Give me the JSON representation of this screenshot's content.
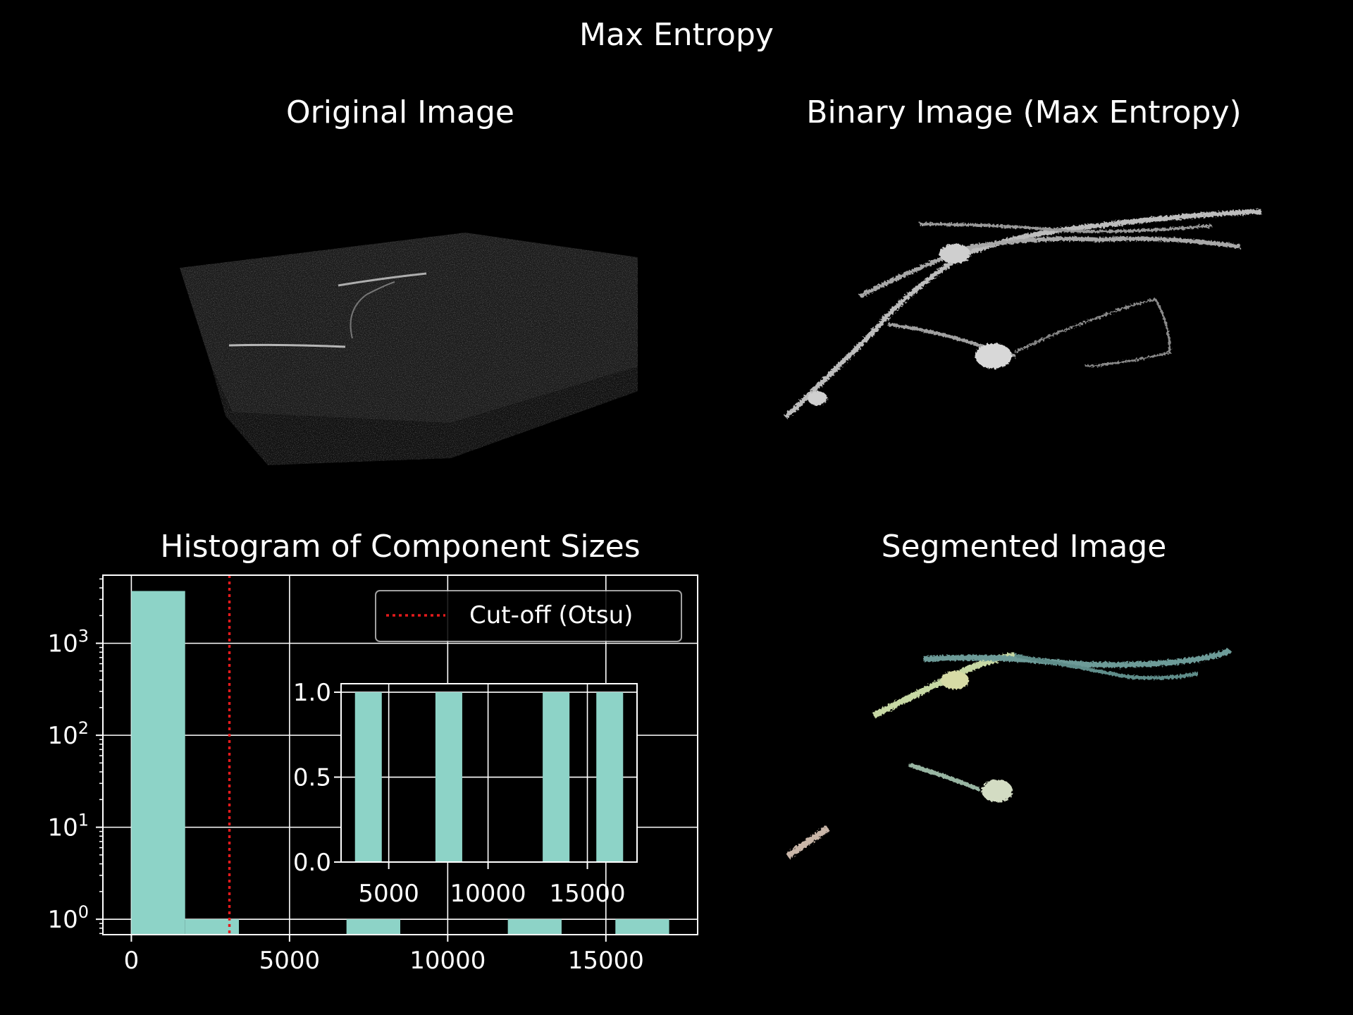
{
  "figure": {
    "suptitle": "Max Entropy",
    "panels": {
      "original": "Original Image",
      "binary": "Binary Image (Max Entropy)",
      "histogram": "Histogram of Component Sizes",
      "segmented": "Segmented Image"
    }
  },
  "colors": {
    "background": "#000000",
    "bar": "#8dd3c7",
    "cutoff": "#e41a1c",
    "grid": "#ffffff"
  },
  "chart_data": [
    {
      "type": "bar",
      "name": "main-histogram",
      "yscale": "log",
      "xlim": [
        -900,
        17900
      ],
      "ylim": [
        0.68,
        5500
      ],
      "xticks": [
        0,
        5000,
        10000,
        15000
      ],
      "xtick_labels": [
        "0",
        "5000",
        "10000",
        "15000"
      ],
      "yticks": [
        1,
        10,
        100,
        1000
      ],
      "ytick_labels": [
        {
          "base": "10",
          "exp": "0"
        },
        {
          "base": "10",
          "exp": "1"
        },
        {
          "base": "10",
          "exp": "2"
        },
        {
          "base": "10",
          "exp": "3"
        }
      ],
      "grid": true,
      "bins": [
        {
          "x0": 0,
          "x1": 1700,
          "count": 3700
        },
        {
          "x0": 1700,
          "x1": 3400,
          "count": 1
        },
        {
          "x0": 6800,
          "x1": 8500,
          "count": 1
        },
        {
          "x0": 11900,
          "x1": 13600,
          "count": 1
        },
        {
          "x0": 15300,
          "x1": 17000,
          "count": 1
        }
      ],
      "cutoff": {
        "x": 3100,
        "label": "Cut-off (Otsu)"
      },
      "legend": "top-right"
    },
    {
      "type": "bar",
      "name": "inset-histogram",
      "xlim": [
        2600,
        17500
      ],
      "ylim": [
        0,
        1.05
      ],
      "xticks": [
        5000,
        10000,
        15000
      ],
      "xtick_labels": [
        "5000",
        "10000",
        "15000"
      ],
      "yticks": [
        0,
        0.5,
        1.0
      ],
      "ytick_labels": [
        "0.0",
        "0.5",
        "1.0"
      ],
      "grid": true,
      "bins": [
        {
          "x0": 3300,
          "x1": 4650,
          "count": 1
        },
        {
          "x0": 7350,
          "x1": 8700,
          "count": 1
        },
        {
          "x0": 12750,
          "x1": 14100,
          "count": 1
        },
        {
          "x0": 15450,
          "x1": 16800,
          "count": 1
        }
      ]
    }
  ]
}
